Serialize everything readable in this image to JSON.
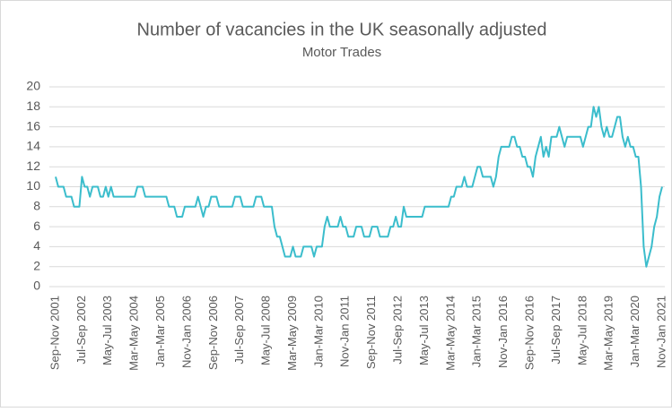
{
  "chart_data": {
    "type": "line",
    "title": "Number of vacancies in the UK seasonally adjusted",
    "subtitle": "Motor Trades",
    "categories": [
      "Sep-Nov 2001",
      null,
      null,
      null,
      null,
      null,
      null,
      null,
      null,
      null,
      "Jul-Sep 2002",
      null,
      null,
      null,
      null,
      null,
      null,
      null,
      null,
      null,
      "May-Jul 2003",
      null,
      null,
      null,
      null,
      null,
      null,
      null,
      null,
      null,
      "Mar-May 2004",
      null,
      null,
      null,
      null,
      null,
      null,
      null,
      null,
      null,
      "Jan-Mar 2005",
      null,
      null,
      null,
      null,
      null,
      null,
      null,
      null,
      null,
      "Nov-Jan 2006",
      null,
      null,
      null,
      null,
      null,
      null,
      null,
      null,
      null,
      "Sep-Nov 2006",
      null,
      null,
      null,
      null,
      null,
      null,
      null,
      null,
      null,
      "Jul-Sep 2007",
      null,
      null,
      null,
      null,
      null,
      null,
      null,
      null,
      null,
      "May-Jul 2008",
      null,
      null,
      null,
      null,
      null,
      null,
      null,
      null,
      null,
      "Mar-May 2009",
      null,
      null,
      null,
      null,
      null,
      null,
      null,
      null,
      null,
      "Jan-Mar 2010",
      null,
      null,
      null,
      null,
      null,
      null,
      null,
      null,
      null,
      "Nov-Jan 2011",
      null,
      null,
      null,
      null,
      null,
      null,
      null,
      null,
      null,
      "Sep-Nov 2011",
      null,
      null,
      null,
      null,
      null,
      null,
      null,
      null,
      null,
      "Jul-Sep 2012",
      null,
      null,
      null,
      null,
      null,
      null,
      null,
      null,
      null,
      "May-Jul 2013",
      null,
      null,
      null,
      null,
      null,
      null,
      null,
      null,
      null,
      "Mar-May 2014",
      null,
      null,
      null,
      null,
      null,
      null,
      null,
      null,
      null,
      "Jan-Mar 2015",
      null,
      null,
      null,
      null,
      null,
      null,
      null,
      null,
      null,
      "Nov-Jan 2016",
      null,
      null,
      null,
      null,
      null,
      null,
      null,
      null,
      null,
      "Sep-Nov 2016",
      null,
      null,
      null,
      null,
      null,
      null,
      null,
      null,
      null,
      "Jul-Sep 2017",
      null,
      null,
      null,
      null,
      null,
      null,
      null,
      null,
      null,
      "May-Jul 2018",
      null,
      null,
      null,
      null,
      null,
      null,
      null,
      null,
      null,
      "Mar-May 2019",
      null,
      null,
      null,
      null,
      null,
      null,
      null,
      null,
      null,
      "Jan-Mar 2020",
      null,
      null,
      null,
      null,
      null,
      null,
      null,
      null,
      null,
      "Nov-Jan 2021"
    ],
    "series": [
      {
        "color": "#3bbdcc",
        "values": [
          11,
          10,
          10,
          10,
          9,
          9,
          9,
          8,
          8,
          8,
          11,
          10,
          10,
          9,
          10,
          10,
          10,
          9,
          9,
          10,
          9,
          10,
          9,
          9,
          9,
          9,
          9,
          9,
          9,
          9,
          9,
          10,
          10,
          10,
          9,
          9,
          9,
          9,
          9,
          9,
          9,
          9,
          9,
          8,
          8,
          8,
          7,
          7,
          7,
          8,
          8,
          8,
          8,
          8,
          9,
          8,
          7,
          8,
          8,
          9,
          9,
          9,
          8,
          8,
          8,
          8,
          8,
          8,
          9,
          9,
          9,
          8,
          8,
          8,
          8,
          8,
          9,
          9,
          9,
          8,
          8,
          8,
          8,
          6,
          5,
          5,
          4,
          3,
          3,
          3,
          4,
          3,
          3,
          3,
          4,
          4,
          4,
          4,
          3,
          4,
          4,
          4,
          6,
          7,
          6,
          6,
          6,
          6,
          7,
          6,
          6,
          5,
          5,
          5,
          6,
          6,
          6,
          5,
          5,
          5,
          6,
          6,
          6,
          5,
          5,
          5,
          5,
          6,
          6,
          7,
          6,
          6,
          8,
          7,
          7,
          7,
          7,
          7,
          7,
          7,
          8,
          8,
          8,
          8,
          8,
          8,
          8,
          8,
          8,
          8,
          9,
          9,
          10,
          10,
          10,
          11,
          10,
          10,
          10,
          11,
          12,
          12,
          11,
          11,
          11,
          11,
          10,
          11,
          13,
          14,
          14,
          14,
          14,
          15,
          15,
          14,
          14,
          13,
          13,
          12,
          12,
          11,
          13,
          14,
          15,
          13,
          14,
          13,
          15,
          15,
          15,
          16,
          15,
          14,
          15,
          15,
          15,
          15,
          15,
          15,
          14,
          15,
          16,
          16,
          18,
          17,
          18,
          16,
          15,
          16,
          15,
          15,
          16,
          17,
          17,
          15,
          14,
          15,
          14,
          14,
          13,
          13,
          10,
          4,
          2,
          3,
          4,
          6,
          7,
          9,
          10
        ]
      }
    ],
    "ylim": [
      0,
      20
    ],
    "yticks": [
      0,
      2,
      4,
      6,
      8,
      10,
      12,
      14,
      16,
      18,
      20
    ],
    "grid": true
  }
}
